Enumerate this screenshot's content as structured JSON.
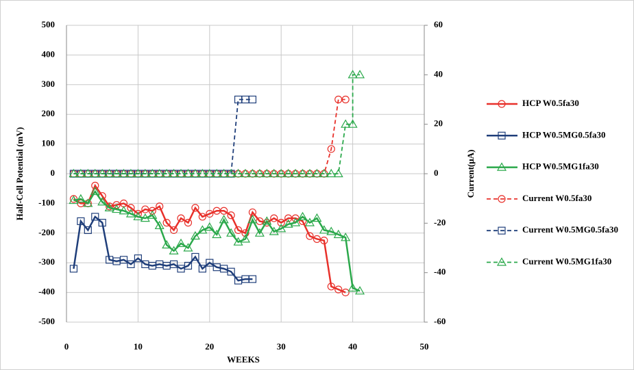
{
  "chart_data": {
    "type": "line",
    "xlabel": "WEEKS",
    "ylabel": "Half-Cell Potential (mV)",
    "y2label": "Current(μA)",
    "xlim": [
      0,
      50
    ],
    "xticks": [
      0,
      10,
      20,
      30,
      40,
      50
    ],
    "ylim": [
      -500,
      500
    ],
    "yticks": [
      -500,
      -400,
      -300,
      -200,
      -100,
      0,
      100,
      200,
      300,
      400,
      500
    ],
    "y2lim": [
      -60,
      60
    ],
    "y2ticks": [
      -60,
      -40,
      -20,
      0,
      20,
      40,
      60
    ],
    "grid": true,
    "legend": "right",
    "series": [
      {
        "name": "HCP W0.5fa30",
        "color": "#e8302a",
        "marker": "circle",
        "dash": false,
        "axis": "y",
        "x": [
          1,
          2,
          3,
          4,
          5,
          6,
          7,
          8,
          9,
          10,
          11,
          12,
          13,
          14,
          15,
          16,
          17,
          18,
          19,
          20,
          21,
          22,
          23,
          24,
          25,
          26,
          27,
          28,
          29,
          30,
          31,
          32,
          33,
          34,
          35,
          36,
          37,
          38,
          39
        ],
        "values": [
          -85,
          -100,
          -100,
          -40,
          -75,
          -110,
          -105,
          -100,
          -115,
          -135,
          -120,
          -125,
          -110,
          -165,
          -190,
          -150,
          -165,
          -115,
          -145,
          -135,
          -125,
          -125,
          -140,
          -190,
          -200,
          -130,
          -160,
          -165,
          -150,
          -165,
          -150,
          -150,
          -160,
          -210,
          -220,
          -225,
          -380,
          -390,
          -400
        ]
      },
      {
        "name": "HCP W0.5MG0.5fa30",
        "color": "#1f3e7a",
        "marker": "square",
        "dash": false,
        "axis": "y",
        "x": [
          1,
          2,
          3,
          4,
          5,
          6,
          7,
          8,
          9,
          10,
          11,
          12,
          13,
          14,
          15,
          16,
          17,
          18,
          19,
          20,
          21,
          22,
          23,
          24,
          25,
          26
        ],
        "values": [
          -320,
          -160,
          -190,
          -145,
          -165,
          -290,
          -295,
          -290,
          -305,
          -285,
          -305,
          -310,
          -305,
          -310,
          -305,
          -320,
          -310,
          -280,
          -320,
          -300,
          -315,
          -320,
          -330,
          -360,
          -355,
          -355
        ]
      },
      {
        "name": "HCP W0.5MG1fa30",
        "color": "#2aa84a",
        "marker": "triangle",
        "dash": false,
        "axis": "y",
        "x": [
          1,
          2,
          3,
          4,
          5,
          6,
          7,
          8,
          9,
          10,
          11,
          12,
          13,
          14,
          15,
          16,
          17,
          18,
          19,
          20,
          21,
          22,
          23,
          24,
          25,
          26,
          27,
          28,
          29,
          30,
          31,
          32,
          33,
          34,
          35,
          36,
          37,
          38,
          39,
          40,
          41
        ],
        "values": [
          -90,
          -85,
          -100,
          -60,
          -95,
          -115,
          -120,
          -125,
          -135,
          -145,
          -150,
          -140,
          -175,
          -240,
          -260,
          -235,
          -250,
          -210,
          -190,
          -180,
          -205,
          -155,
          -200,
          -230,
          -220,
          -155,
          -200,
          -160,
          -195,
          -185,
          -170,
          -165,
          -145,
          -165,
          -150,
          -190,
          -195,
          -205,
          -215,
          -385,
          -395
        ]
      },
      {
        "name": "Current W0.5fa30",
        "color": "#e8302a",
        "marker": "circle",
        "dash": true,
        "axis": "y2",
        "x": [
          1,
          2,
          3,
          4,
          5,
          6,
          7,
          8,
          9,
          10,
          11,
          12,
          13,
          14,
          15,
          16,
          17,
          18,
          19,
          20,
          21,
          22,
          23,
          24,
          25,
          26,
          27,
          28,
          29,
          30,
          31,
          32,
          33,
          34,
          35,
          36,
          37,
          38,
          39
        ],
        "values": [
          0,
          0,
          0,
          0,
          0,
          0,
          0,
          0,
          0,
          0,
          0,
          0,
          0,
          0,
          0,
          0,
          0,
          0,
          0,
          0,
          0,
          0,
          0,
          0,
          0,
          0,
          0,
          0,
          0,
          0,
          0,
          0,
          0,
          0,
          0,
          0,
          10,
          30,
          30
        ]
      },
      {
        "name": "Current W0.5MG0.5fa30",
        "color": "#1f3e7a",
        "marker": "square",
        "dash": true,
        "axis": "y2",
        "x": [
          1,
          2,
          3,
          4,
          5,
          6,
          7,
          8,
          9,
          10,
          11,
          12,
          13,
          14,
          15,
          16,
          17,
          18,
          19,
          20,
          21,
          22,
          23,
          24,
          25,
          26
        ],
        "values": [
          0,
          0,
          0,
          0,
          0,
          0,
          0,
          0,
          0,
          0,
          0,
          0,
          0,
          0,
          0,
          0,
          0,
          0,
          0,
          0,
          0,
          0,
          0,
          30,
          30,
          30
        ]
      },
      {
        "name": "Current W0.5MG1fa30",
        "color": "#2aa84a",
        "marker": "triangle",
        "dash": true,
        "axis": "y2",
        "x": [
          1,
          2,
          3,
          4,
          5,
          6,
          7,
          8,
          9,
          10,
          11,
          12,
          13,
          14,
          15,
          16,
          17,
          18,
          19,
          20,
          21,
          22,
          23,
          24,
          25,
          26,
          27,
          28,
          29,
          30,
          31,
          32,
          33,
          34,
          35,
          36,
          37,
          38,
          39,
          40,
          40,
          41
        ],
        "values": [
          0,
          0,
          0,
          0,
          0,
          0,
          0,
          0,
          0,
          0,
          0,
          0,
          0,
          0,
          0,
          0,
          0,
          0,
          0,
          0,
          0,
          0,
          0,
          0,
          0,
          0,
          0,
          0,
          0,
          0,
          0,
          0,
          0,
          0,
          0,
          0,
          0,
          0,
          20,
          20,
          40,
          40
        ]
      }
    ]
  }
}
